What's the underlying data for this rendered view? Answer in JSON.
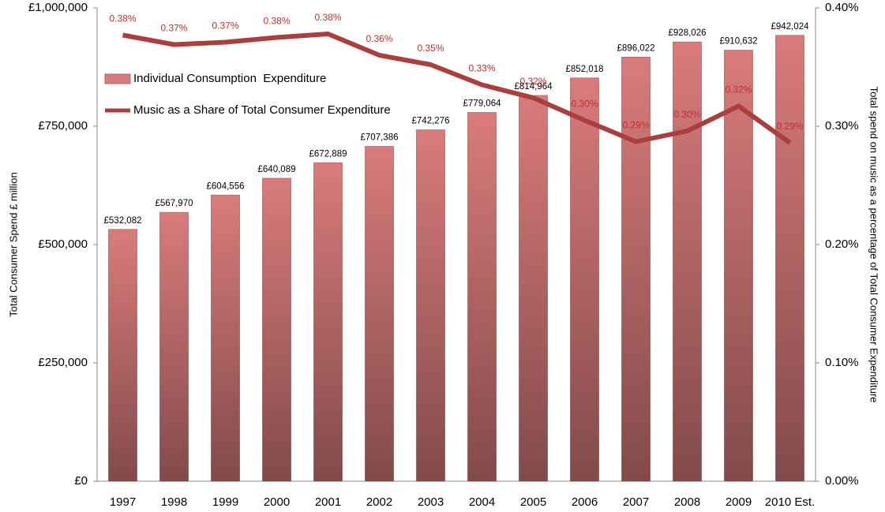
{
  "chart_data": {
    "type": "bar-line",
    "ylabel": "Total Consumer Spend £ million",
    "y2label": "Total spend on music as a percentage of Total Consumer Expenditure",
    "categories": [
      "1997",
      "1998",
      "1999",
      "2000",
      "2001",
      "2002",
      "2003",
      "2004",
      "2005",
      "2006",
      "2007",
      "2008",
      "2009",
      "2010 Est."
    ],
    "series": [
      {
        "name": "Individual Consumption  Expenditure",
        "type": "bar",
        "color": "#d97b7b",
        "values": [
          532082,
          567970,
          604556,
          640089,
          672889,
          707386,
          742276,
          779064,
          814964,
          852018,
          896022,
          928026,
          910632,
          942024
        ],
        "value_labels": [
          "£532,082",
          "£567,970",
          "£604,556",
          "£640,089",
          "£672,889",
          "£707,386",
          "£742,276",
          "£779,064",
          "£814,964",
          "£852,018",
          "£896,022",
          "£928,026",
          "£910,632",
          "£942,024"
        ]
      },
      {
        "name": "Music as a Share of Total Consumer Expenditure",
        "type": "line",
        "axis": "y2",
        "color": "#a9403f",
        "values": [
          0.377,
          0.369,
          0.371,
          0.375,
          0.378,
          0.36,
          0.352,
          0.335,
          0.324,
          0.305,
          0.287,
          0.296,
          0.317,
          0.286
        ],
        "value_labels": [
          "0.38%",
          "0.37%",
          "0.37%",
          "0.38%",
          "0.38%",
          "0.36%",
          "0.35%",
          "0.33%",
          "0.32%",
          "0.30%",
          "0.29%",
          "0.30%",
          "0.32%",
          "0.29%"
        ]
      }
    ],
    "ylim": [
      0,
      1000000
    ],
    "yticks": [
      {
        "value": 0,
        "label": "£0"
      },
      {
        "value": 250000,
        "label": "£250,000"
      },
      {
        "value": 500000,
        "label": "£500,000"
      },
      {
        "value": 750000,
        "label": "£750,000"
      },
      {
        "value": 1000000,
        "label": "£1,000,000"
      }
    ],
    "y2lim": [
      0,
      0.4
    ],
    "y2ticks": [
      {
        "value": 0,
        "label": "0.00%"
      },
      {
        "value": 0.1,
        "label": "0.10%"
      },
      {
        "value": 0.2,
        "label": "0.20%"
      },
      {
        "value": 0.3,
        "label": "0.30%"
      },
      {
        "value": 0.4,
        "label": "0.40%"
      }
    ],
    "legend": "upper left"
  }
}
